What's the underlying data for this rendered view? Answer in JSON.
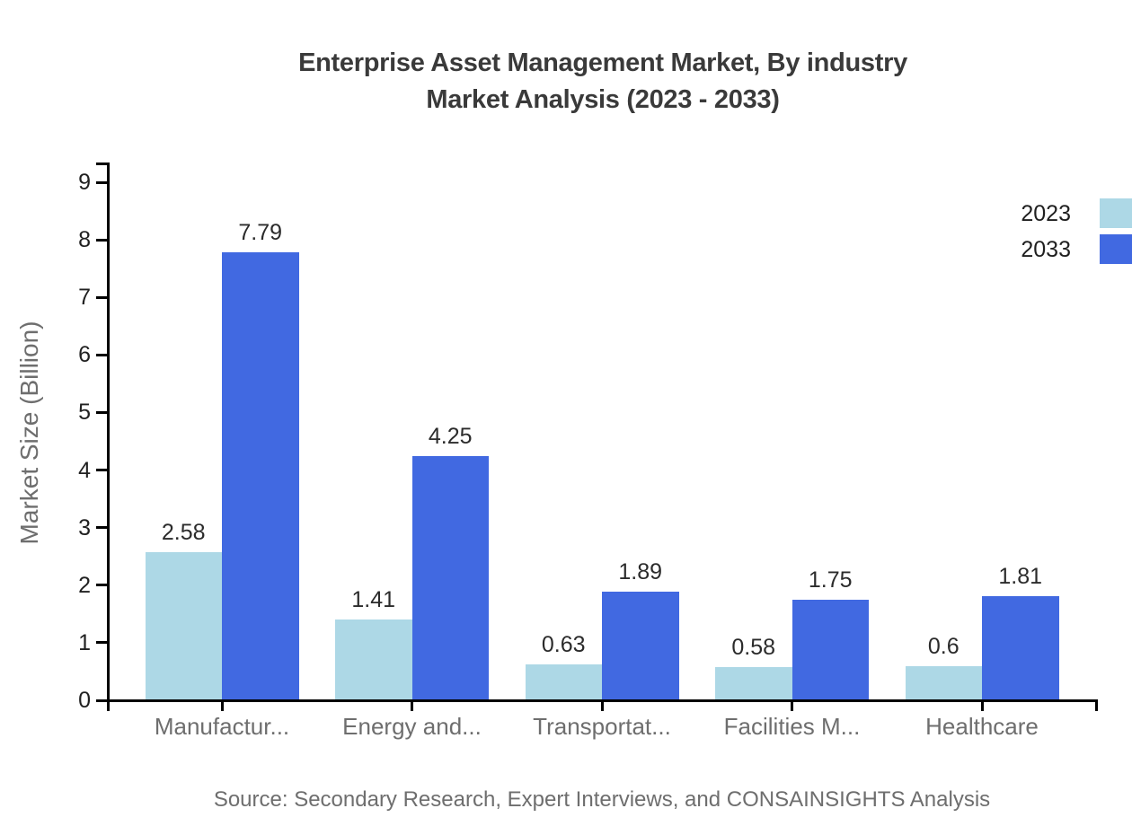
{
  "title": {
    "line1": "Enterprise Asset Management Market, By industry",
    "line2": "Market Analysis (2023 - 2033)"
  },
  "source": {
    "text": "Source: Secondary Research, Expert Interviews, and CONSAINSIGHTS Analysis"
  },
  "chart_data": {
    "type": "bar",
    "title": "Enterprise Asset Management Market, By industry Market Analysis (2023 - 2033)",
    "categories": [
      "Manufactur...",
      "Energy and...",
      "Transportat...",
      "Facilities M...",
      "Healthcare"
    ],
    "series": [
      {
        "name": "2023",
        "color": "#ADD8E6",
        "values": [
          2.58,
          1.41,
          0.63,
          0.58,
          0.6
        ]
      },
      {
        "name": "2033",
        "color": "#4169E1",
        "values": [
          7.79,
          4.25,
          1.89,
          1.75,
          1.81
        ]
      }
    ],
    "xlabel": "",
    "ylabel": "Market Size (Billion)",
    "ylim": [
      0,
      9
    ],
    "y_ticks": [
      0,
      1,
      2,
      3,
      4,
      5,
      6,
      7,
      8,
      9
    ],
    "grid": false,
    "data_labels": true,
    "legend_position": "top-right",
    "axis_color": "#000000",
    "label_color": "#6e6e6e",
    "value_label_color": "#2b2b2b"
  }
}
